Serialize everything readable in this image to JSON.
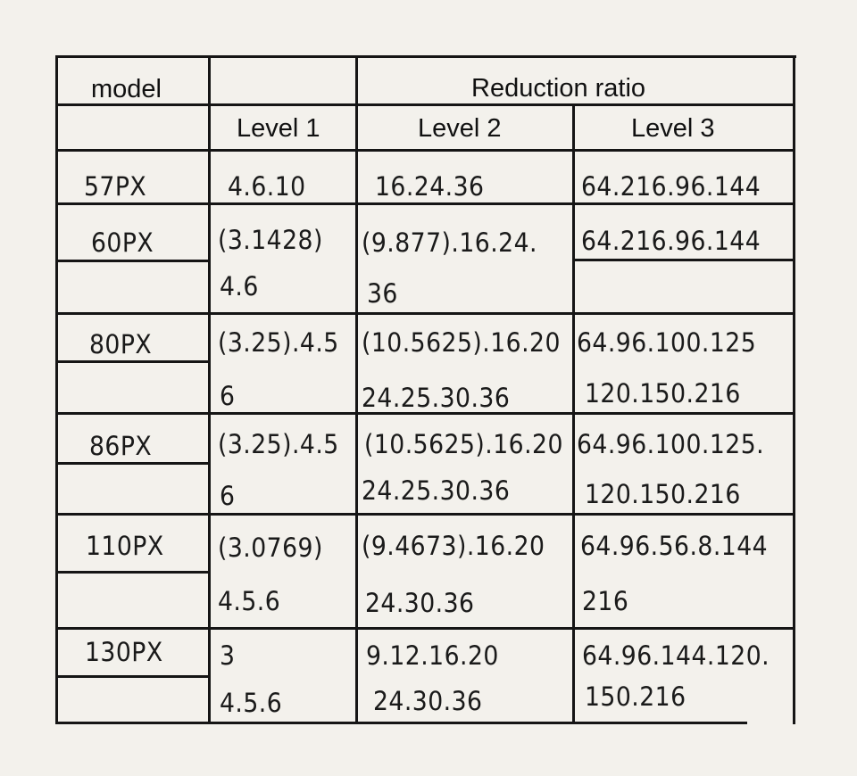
{
  "table": {
    "headers": {
      "model": "model",
      "reduction_ratio": "Reduction ratio",
      "level1": "Level 1",
      "level2": "Level 2",
      "level3": "Level 3"
    },
    "rows": [
      {
        "model": "57PX",
        "level1": [
          "4.6.10"
        ],
        "level2": [
          "16.24.36"
        ],
        "level3": [
          "64.216.96.144"
        ]
      },
      {
        "model": "60PX",
        "level1": [
          "(3.1428)",
          "4.6"
        ],
        "level2": [
          "(9.877).16.24.",
          "36"
        ],
        "level3": [
          "64.216.96.144"
        ]
      },
      {
        "model": "80PX",
        "level1": [
          "(3.25).4.5",
          "6"
        ],
        "level2": [
          "(10.5625).16.20",
          "24.25.30.36"
        ],
        "level3": [
          "64.96.100.125",
          "120.150.216"
        ]
      },
      {
        "model": "86PX",
        "level1": [
          "(3.25).4.5",
          "6"
        ],
        "level2": [
          "(10.5625).16.20",
          "24.25.30.36"
        ],
        "level3": [
          "64.96.100.125.",
          "120.150.216"
        ]
      },
      {
        "model": "110PX",
        "level1": [
          "(3.0769)",
          "4.5.6"
        ],
        "level2": [
          "(9.4673).16.20",
          "24.30.36"
        ],
        "level3": [
          "64.96.56.8.144",
          "216"
        ]
      },
      {
        "model": "130PX",
        "level1": [
          "3",
          "4.5.6"
        ],
        "level2": [
          "9.12.16.20",
          "24.30.36"
        ],
        "level3": [
          "64.96.144.120.",
          "150.216"
        ]
      }
    ]
  }
}
